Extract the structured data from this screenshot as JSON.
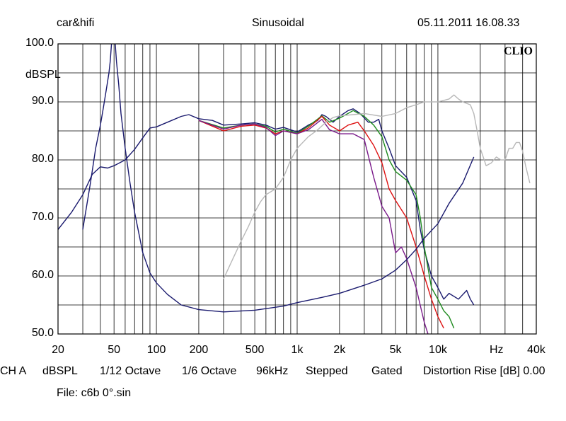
{
  "header": {
    "left": "car&hifi",
    "center": "Sinusoidal",
    "right": "05.11.2011 16.08.33"
  },
  "brand": "CLIO",
  "y_unit_label": "dBSPL",
  "x_unit_label": "Hz",
  "settings_bar": [
    "CH A",
    "dBSPL",
    "1/12 Octave",
    "1/6 Octave",
    "96kHz",
    "Stepped",
    "Gated",
    "Distortion Rise [dB] 0.00"
  ],
  "file_label": "File: c6b 0°.sin",
  "colors": {
    "navy": "#1a1a6e",
    "green": "#1e8a1e",
    "red": "#dd1111",
    "purple": "#7a1a8a",
    "gray": "#b8b8b8",
    "grid": "#000000"
  },
  "chart_data": {
    "type": "line",
    "xscale": "log",
    "xlim": [
      20,
      50000
    ],
    "ylim": [
      50,
      100
    ],
    "grid": true,
    "x_tick_labels": [
      {
        "v": 20,
        "t": "20"
      },
      {
        "v": 50,
        "t": "50"
      },
      {
        "v": 100,
        "t": "100"
      },
      {
        "v": 200,
        "t": "200"
      },
      {
        "v": 500,
        "t": "500"
      },
      {
        "v": 1000,
        "t": "1k"
      },
      {
        "v": 2000,
        "t": "2k"
      },
      {
        "v": 5000,
        "t": "5k"
      },
      {
        "v": 10000,
        "t": "10k"
      },
      {
        "v": 40000,
        "t": "40k"
      }
    ],
    "y_tick_labels": [
      {
        "v": 100,
        "t": "100.0"
      },
      {
        "v": 90,
        "t": "90.0"
      },
      {
        "v": 80,
        "t": "80.0"
      },
      {
        "v": 70,
        "t": "70.0"
      },
      {
        "v": 60,
        "t": "60.0"
      },
      {
        "v": 50,
        "t": "50.0"
      }
    ],
    "series": [
      {
        "color": "#1a1a6e",
        "points": [
          [
            20,
            68
          ],
          [
            25,
            71
          ],
          [
            30,
            74
          ],
          [
            35,
            77.5
          ],
          [
            40,
            78.8
          ],
          [
            45,
            78.6
          ],
          [
            50,
            79
          ],
          [
            60,
            80
          ],
          [
            70,
            81.8
          ],
          [
            80,
            83.8
          ],
          [
            90,
            85.5
          ],
          [
            100,
            85.7
          ],
          [
            120,
            86.5
          ],
          [
            150,
            87.5
          ],
          [
            170,
            87.8
          ],
          [
            200,
            87.1
          ],
          [
            250,
            86.8
          ],
          [
            300,
            86
          ],
          [
            400,
            86.2
          ],
          [
            500,
            86.4
          ],
          [
            600,
            86
          ],
          [
            700,
            85.3
          ],
          [
            800,
            85.6
          ],
          [
            1000,
            84.8
          ],
          [
            1200,
            86
          ],
          [
            1400,
            86.8
          ],
          [
            1500,
            87.8
          ],
          [
            1600,
            87.5
          ],
          [
            1800,
            86.5
          ],
          [
            2000,
            87.5
          ],
          [
            2300,
            88.5
          ],
          [
            2500,
            88.8
          ],
          [
            2800,
            88
          ],
          [
            3200,
            86.5
          ],
          [
            3500,
            86.5
          ],
          [
            3800,
            87
          ],
          [
            4000,
            85
          ],
          [
            4500,
            82
          ],
          [
            5000,
            79
          ],
          [
            6000,
            77
          ],
          [
            7000,
            73
          ],
          [
            7500,
            68
          ],
          [
            8000,
            64.5
          ],
          [
            9000,
            60
          ],
          [
            10000,
            58
          ],
          [
            11000,
            56
          ],
          [
            12000,
            57
          ],
          [
            14000,
            56
          ],
          [
            16000,
            57.5
          ],
          [
            17000,
            56
          ],
          [
            18000,
            55
          ]
        ]
      },
      {
        "color": "#1e8a1e",
        "points": [
          [
            200,
            86.8
          ],
          [
            300,
            85.5
          ],
          [
            400,
            86
          ],
          [
            500,
            86.2
          ],
          [
            600,
            85.8
          ],
          [
            700,
            84.8
          ],
          [
            800,
            85.3
          ],
          [
            1000,
            84.6
          ],
          [
            1200,
            85.8
          ],
          [
            1500,
            87.6
          ],
          [
            1700,
            86.5
          ],
          [
            2000,
            87.2
          ],
          [
            2500,
            88.5
          ],
          [
            3000,
            87.5
          ],
          [
            3500,
            86
          ],
          [
            4000,
            84
          ],
          [
            4500,
            80
          ],
          [
            5000,
            78
          ],
          [
            6000,
            76.5
          ],
          [
            7000,
            74
          ],
          [
            7500,
            70
          ],
          [
            8000,
            65
          ],
          [
            9000,
            58
          ],
          [
            10000,
            56
          ],
          [
            11000,
            54
          ],
          [
            12000,
            53
          ],
          [
            13000,
            51
          ]
        ]
      },
      {
        "color": "#dd1111",
        "points": [
          [
            200,
            86.8
          ],
          [
            300,
            85
          ],
          [
            400,
            85.8
          ],
          [
            500,
            86
          ],
          [
            600,
            85.5
          ],
          [
            700,
            84.5
          ],
          [
            800,
            85
          ],
          [
            1000,
            84.5
          ],
          [
            1200,
            85.5
          ],
          [
            1500,
            87.5
          ],
          [
            1700,
            86
          ],
          [
            2000,
            85
          ],
          [
            2300,
            86
          ],
          [
            2700,
            86.5
          ],
          [
            3000,
            85
          ],
          [
            3500,
            82.5
          ],
          [
            4000,
            79.5
          ],
          [
            4500,
            75
          ],
          [
            5000,
            73
          ],
          [
            6000,
            70
          ],
          [
            7000,
            65
          ],
          [
            8000,
            60
          ],
          [
            9000,
            56
          ],
          [
            10000,
            53
          ],
          [
            11000,
            51
          ]
        ]
      },
      {
        "color": "#7a1a8a",
        "points": [
          [
            200,
            86.8
          ],
          [
            300,
            85.3
          ],
          [
            400,
            86
          ],
          [
            500,
            86.2
          ],
          [
            600,
            85.6
          ],
          [
            700,
            84.2
          ],
          [
            800,
            85
          ],
          [
            1000,
            84.5
          ],
          [
            1200,
            85.2
          ],
          [
            1500,
            87
          ],
          [
            1700,
            85.2
          ],
          [
            2000,
            84.5
          ],
          [
            2500,
            84.5
          ],
          [
            3000,
            83.5
          ],
          [
            3500,
            77
          ],
          [
            4000,
            72
          ],
          [
            4500,
            70
          ],
          [
            5000,
            64
          ],
          [
            5500,
            65
          ],
          [
            6000,
            63
          ],
          [
            7000,
            58
          ],
          [
            8000,
            52
          ],
          [
            8500,
            50
          ]
        ]
      },
      {
        "color": "#b8b8b8",
        "points": [
          [
            300,
            59.5
          ],
          [
            350,
            63
          ],
          [
            400,
            66
          ],
          [
            450,
            68.5
          ],
          [
            500,
            71
          ],
          [
            550,
            72.8
          ],
          [
            600,
            74
          ],
          [
            700,
            75
          ],
          [
            800,
            77
          ],
          [
            900,
            80
          ],
          [
            1000,
            82
          ],
          [
            1200,
            84
          ],
          [
            1400,
            85.2
          ],
          [
            1600,
            86.5
          ],
          [
            1800,
            87.3
          ],
          [
            2000,
            87.6
          ],
          [
            2500,
            87.8
          ],
          [
            3000,
            88
          ],
          [
            4000,
            87.5
          ],
          [
            5000,
            88
          ],
          [
            6000,
            89
          ],
          [
            7000,
            89.5
          ],
          [
            8000,
            90
          ],
          [
            9000,
            90
          ],
          [
            10000,
            90
          ],
          [
            12000,
            90.5
          ],
          [
            13000,
            91.2
          ],
          [
            14000,
            90.5
          ],
          [
            15000,
            90
          ],
          [
            17000,
            89.5
          ],
          [
            18000,
            88
          ],
          [
            19000,
            85
          ],
          [
            20000,
            82
          ],
          [
            21000,
            80.5
          ],
          [
            22000,
            79
          ],
          [
            24000,
            79.5
          ],
          [
            26000,
            80.5
          ],
          [
            28000,
            80
          ],
          [
            30000,
            80
          ],
          [
            32000,
            82
          ],
          [
            34000,
            82
          ],
          [
            36000,
            83
          ],
          [
            38000,
            83
          ],
          [
            40000,
            81.5
          ],
          [
            42000,
            79
          ],
          [
            45000,
            76
          ]
        ]
      },
      {
        "color": "#1a1a6e",
        "points": [
          [
            30,
            68
          ],
          [
            34,
            76
          ],
          [
            37,
            82
          ],
          [
            40,
            86
          ],
          [
            42,
            89
          ],
          [
            44,
            92
          ],
          [
            46,
            95
          ],
          [
            47,
            97
          ],
          [
            48,
            100
          ]
        ]
      },
      {
        "color": "#1a1a6e",
        "points": [
          [
            51,
            100
          ],
          [
            52,
            97
          ],
          [
            54,
            93
          ],
          [
            56,
            88
          ],
          [
            60,
            82
          ],
          [
            65,
            76
          ],
          [
            70,
            71
          ],
          [
            80,
            64
          ],
          [
            90,
            60.5
          ],
          [
            100,
            58.8
          ],
          [
            120,
            56.8
          ],
          [
            150,
            55
          ],
          [
            200,
            54.2
          ],
          [
            300,
            53.8
          ],
          [
            500,
            54.1
          ],
          [
            800,
            54.8
          ],
          [
            1000,
            55.4
          ],
          [
            1500,
            56.3
          ],
          [
            2000,
            57
          ],
          [
            3000,
            58.4
          ],
          [
            4000,
            59.5
          ],
          [
            5000,
            61
          ],
          [
            6000,
            62.8
          ],
          [
            7000,
            64.6
          ],
          [
            8000,
            66.5
          ],
          [
            10000,
            69
          ],
          [
            12000,
            72.5
          ],
          [
            15000,
            76
          ],
          [
            18000,
            80.5
          ]
        ]
      }
    ]
  }
}
